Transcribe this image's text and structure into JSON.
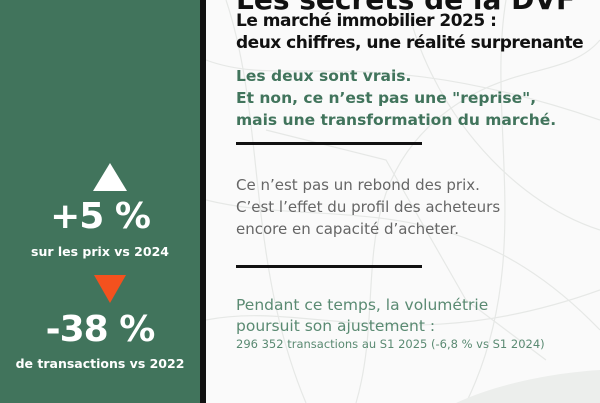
{
  "header": {
    "title": "Les secrets de la DVF",
    "subtitle_lines": [
      "Le marché immobilier 2025 :",
      "deux chiffres, une réalité surprenante"
    ]
  },
  "intro": {
    "lines": [
      "Les deux sont vrais.",
      "Et non, ce n’est pas une \"reprise\",",
      "mais une transformation du marché."
    ]
  },
  "explanation": {
    "lines": [
      "Ce n’est pas un rebond des prix.",
      "C’est l’effet du profil des acheteurs",
      "encore en capacité d’acheter."
    ]
  },
  "volume": {
    "lines": [
      "Pendant ce temps, la volumétrie",
      "poursuit son ajustement :"
    ],
    "detail": "296 352 transactions au S1 2025 (-6,8 % vs S1 2024)"
  },
  "stats": [
    {
      "value": "+5 %",
      "caption": "sur les prix vs 2024",
      "icon": "triangle-up-icon",
      "color": "#ffffff"
    },
    {
      "value": "-38 %",
      "caption": "de transactions vs 2022",
      "icon": "triangle-down-icon",
      "color": "#f4511e"
    }
  ],
  "colors": {
    "panel": "#41745c",
    "accent": "#f4511e"
  }
}
